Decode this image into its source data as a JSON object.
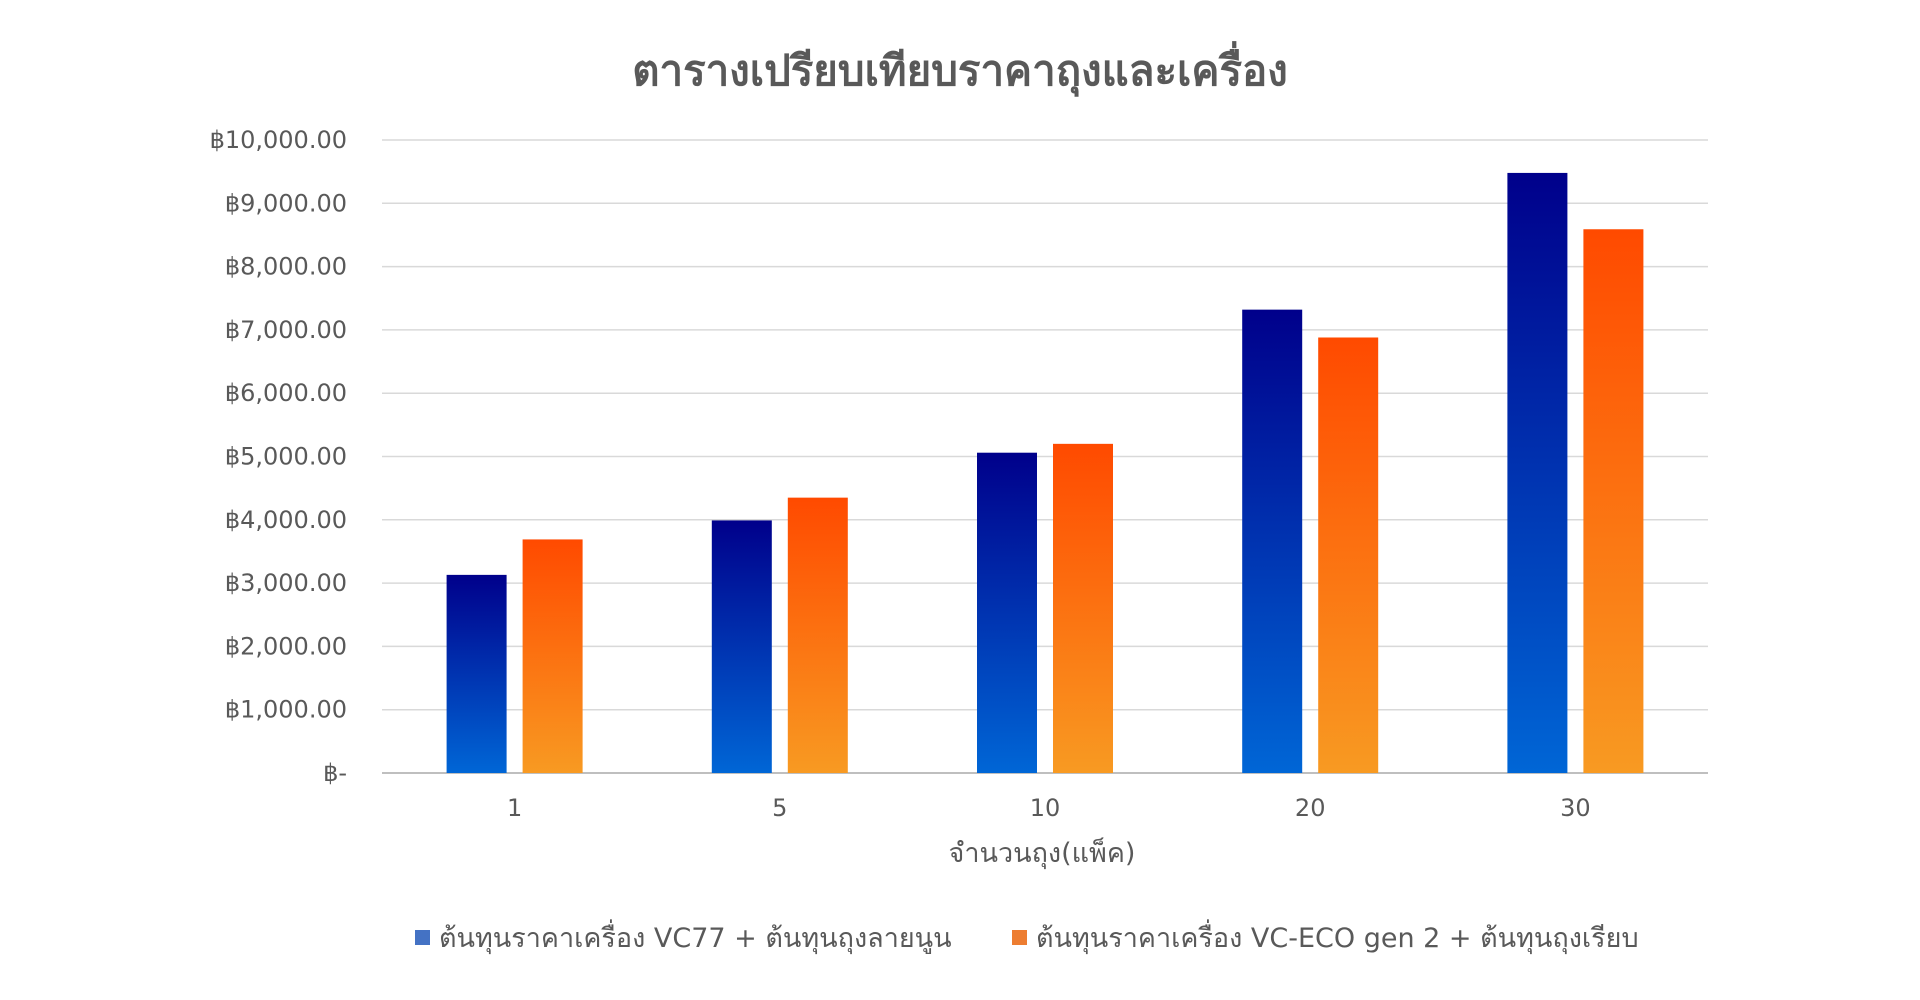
{
  "chart_data": {
    "type": "bar",
    "title": "ตารางเปรียบเทียบราคาถุงและเครื่อง",
    "xlabel": "จำนวนถุง(แพ็ค)",
    "ylabel": "",
    "categories": [
      "1",
      "5",
      "10",
      "20",
      "30"
    ],
    "ylim": [
      0,
      10000
    ],
    "y_ticks": [
      {
        "value": 0,
        "label": "฿-"
      },
      {
        "value": 1000,
        "label": "฿1,000.00"
      },
      {
        "value": 2000,
        "label": "฿2,000.00"
      },
      {
        "value": 3000,
        "label": "฿3,000.00"
      },
      {
        "value": 4000,
        "label": "฿4,000.00"
      },
      {
        "value": 5000,
        "label": "฿5,000.00"
      },
      {
        "value": 6000,
        "label": "฿6,000.00"
      },
      {
        "value": 7000,
        "label": "฿7,000.00"
      },
      {
        "value": 8000,
        "label": "฿8,000.00"
      },
      {
        "value": 9000,
        "label": "฿9,000.00"
      },
      {
        "value": 10000,
        "label": "฿10,000.00"
      }
    ],
    "grid": true,
    "legend_position": "bottom",
    "series": [
      {
        "name": "ต้นทุนราคาเครื่อง VC77 + ต้นทุนถุงลายนูน",
        "values": [
          3130,
          3990,
          5060,
          7320,
          9480
        ],
        "gradient": [
          "#00008b",
          "#0066d6"
        ],
        "legend_color": "#4472c4"
      },
      {
        "name": "ต้นทุนราคาเครื่อง VC-ECO gen 2 + ต้นทุนถุงเรียบ",
        "values": [
          3690,
          4350,
          5200,
          6880,
          8590
        ],
        "gradient": [
          "#ff4a00",
          "#f89a22"
        ],
        "legend_color": "#ed7d31"
      }
    ]
  }
}
